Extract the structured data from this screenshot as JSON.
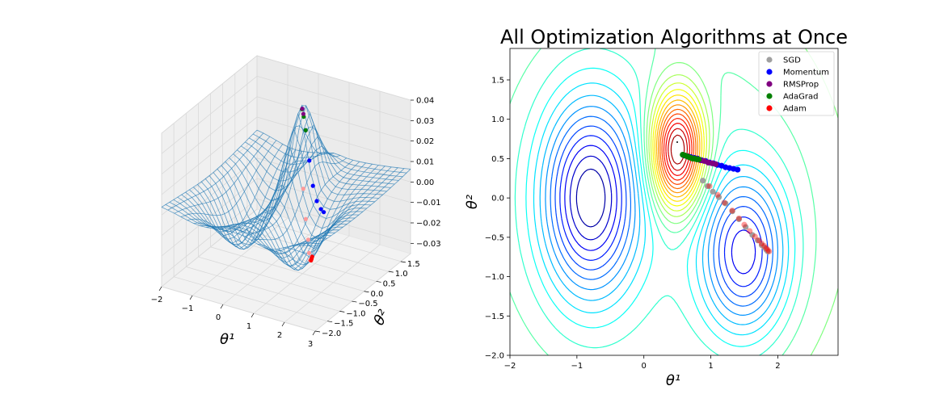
{
  "chart_data": [
    {
      "type": "surface3d",
      "title": "",
      "xlabel": "θ¹",
      "ylabel": "θ²",
      "x_ticks": [
        "−2",
        "−1",
        "0",
        "1",
        "2",
        "3"
      ],
      "y_ticks": [
        "−2.0",
        "−1.5",
        "−1.0",
        "−0.5",
        "0.0",
        "0.5",
        "1.0",
        "1.5"
      ],
      "z_ticks": [
        "−0.03",
        "−0.02",
        "−0.01",
        "0.00",
        "0.01",
        "0.02",
        "0.03",
        "0.04"
      ],
      "xlim": [
        -2,
        3
      ],
      "ylim": [
        -2,
        1.9
      ],
      "zlim": [
        -0.035,
        0.04
      ],
      "surface_color": "#1f77b4",
      "series": [
        {
          "name": "Momentum",
          "color": "#0000ff",
          "x": [
            0.55,
            0.7,
            0.85,
            1.0,
            1.15,
            1.3,
            1.4
          ],
          "y": [
            0.55,
            0.5,
            0.46,
            0.42,
            0.39,
            0.37,
            0.36
          ]
        },
        {
          "name": "AdaGrad",
          "color": "#008000",
          "x": [
            0.55,
            0.62,
            0.7
          ],
          "y": [
            0.54,
            0.52,
            0.5
          ]
        },
        {
          "name": "RMSProp",
          "color": "#800080",
          "x": [
            0.55,
            0.6
          ],
          "y": [
            0.55,
            0.53
          ]
        },
        {
          "name": "SGD",
          "color": "#ff9999",
          "x": [
            0.9,
            1.1,
            1.3,
            1.45,
            1.6,
            1.75
          ],
          "y": [
            0.15,
            0.0,
            -0.15,
            -0.3,
            -0.45,
            -0.6
          ]
        },
        {
          "name": "Adam",
          "color": "#ff0000",
          "x": [
            1.75,
            1.8,
            1.85
          ],
          "y": [
            -0.6,
            -0.64,
            -0.68
          ]
        }
      ]
    },
    {
      "type": "contour",
      "title": "All Optimization Algorithms at Once",
      "xlabel": "θ¹",
      "ylabel": "θ²",
      "xlim": [
        -2,
        2.9
      ],
      "ylim": [
        -2,
        1.9
      ],
      "x_ticks": [
        -2,
        -1,
        0,
        1,
        2
      ],
      "y_ticks": [
        -2.0,
        -1.5,
        -1.0,
        -0.5,
        0.0,
        0.5,
        1.0,
        1.5
      ],
      "x_tick_labels": [
        "−2",
        "−1",
        "0",
        "1",
        "2"
      ],
      "y_tick_labels": [
        "−2.0",
        "−1.5",
        "−1.0",
        "−0.5",
        "0.0",
        "0.5",
        "1.0",
        "1.5"
      ],
      "colormap": "jet",
      "grid": false,
      "legend_position": "top-right",
      "series": [
        {
          "name": "SGD",
          "color": "#a0a0a0",
          "alpha": 1.0,
          "x": [
            0.88,
            0.95,
            1.03,
            1.12,
            1.22,
            1.32,
            1.42,
            1.52,
            1.62,
            1.7,
            1.76,
            1.8,
            1.83,
            1.85
          ],
          "y": [
            0.22,
            0.15,
            0.08,
            0.01,
            -0.07,
            -0.17,
            -0.27,
            -0.37,
            -0.47,
            -0.54,
            -0.6,
            -0.63,
            -0.66,
            -0.68
          ]
        },
        {
          "name": "Momentum",
          "color": "#0000ff",
          "x": [
            0.6,
            0.65,
            0.7,
            0.75,
            0.8,
            0.86,
            0.92,
            0.98,
            1.04,
            1.1,
            1.16,
            1.22,
            1.28,
            1.34,
            1.4
          ],
          "y": [
            0.54,
            0.53,
            0.52,
            0.51,
            0.5,
            0.48,
            0.47,
            0.45,
            0.44,
            0.42,
            0.41,
            0.39,
            0.38,
            0.37,
            0.36
          ]
        },
        {
          "name": "RMSProp",
          "color": "#800080",
          "x": [
            0.6,
            0.66,
            0.72,
            0.78,
            0.84,
            0.9,
            0.96,
            1.02,
            1.07
          ],
          "y": [
            0.54,
            0.53,
            0.51,
            0.5,
            0.48,
            0.47,
            0.45,
            0.44,
            0.43
          ]
        },
        {
          "name": "AdaGrad",
          "color": "#008000",
          "x": [
            0.58,
            0.61,
            0.64,
            0.67,
            0.7,
            0.73,
            0.76,
            0.79,
            0.82
          ],
          "y": [
            0.55,
            0.54,
            0.53,
            0.52,
            0.51,
            0.5,
            0.5,
            0.49,
            0.49
          ]
        },
        {
          "name": "Adam",
          "color": "#ff0000",
          "alpha": 0.4,
          "x": [
            0.98,
            1.1,
            1.2,
            1.32,
            1.42,
            1.5,
            1.58,
            1.66,
            1.72,
            1.76,
            1.8,
            1.83,
            1.85,
            1.87
          ],
          "y": [
            0.15,
            0.04,
            -0.06,
            -0.16,
            -0.26,
            -0.34,
            -0.42,
            -0.49,
            -0.54,
            -0.58,
            -0.61,
            -0.64,
            -0.66,
            -0.68
          ]
        }
      ]
    }
  ]
}
